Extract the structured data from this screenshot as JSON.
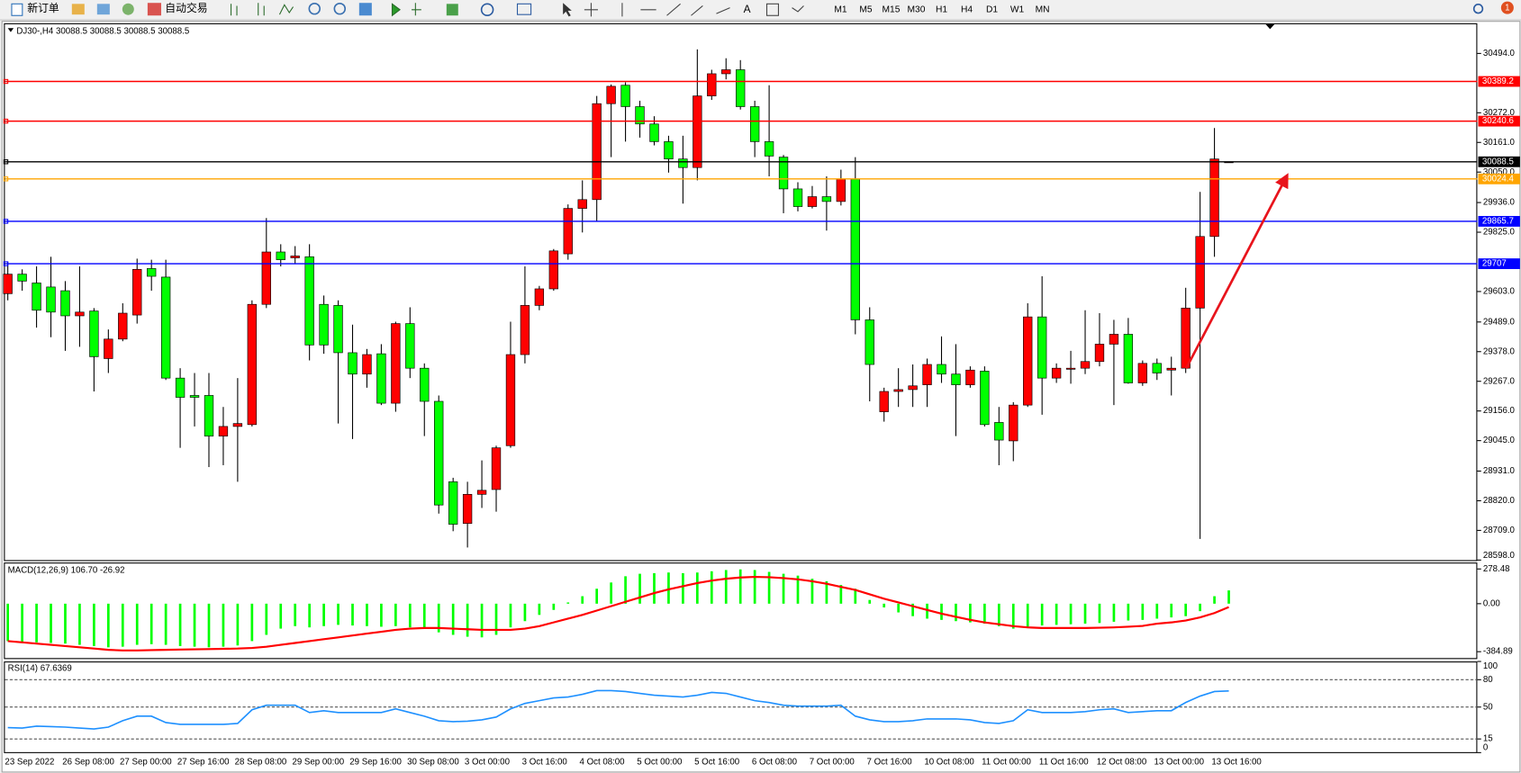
{
  "toolbar": {
    "new_order": "新订单",
    "auto_trading": "自动交易",
    "text_tool": "A",
    "timeframes": [
      "M1",
      "M5",
      "M15",
      "M30",
      "H1",
      "H4",
      "D1",
      "W1",
      "MN"
    ],
    "notifications": "1"
  },
  "chart_data": [
    {
      "type": "candlestick",
      "title": "DJ30-,H4",
      "up_color": "#ff0000",
      "down_color": "#00ff00",
      "categories": [
        "23 Sep 2022",
        null,
        null,
        null,
        "26 Sep 08:00",
        null,
        null,
        null,
        "27 Sep 00:00",
        null,
        null,
        null,
        "27 Sep 16:00",
        null,
        null,
        null,
        "28 Sep 08:00",
        null,
        null,
        null,
        "29 Sep 00:00",
        null,
        null,
        null,
        "29 Sep 16:00",
        null,
        null,
        null,
        "30 Sep 08:00",
        null,
        null,
        null,
        "3 Oct 00:00",
        null,
        null,
        null,
        "3 Oct 16:00",
        null,
        null,
        null,
        "4 Oct 08:00",
        null,
        null,
        null,
        "5 Oct 00:00",
        null,
        null,
        null,
        "5 Oct 16:00",
        null,
        null,
        null,
        "6 Oct 08:00",
        null,
        null,
        null,
        "7 Oct 00:00",
        null,
        null,
        null,
        "7 Oct 16:00",
        null,
        null,
        null,
        "10 Oct 08:00",
        null,
        null,
        null,
        "11 Oct 00:00",
        null,
        null,
        null,
        "11 Oct 16:00",
        null,
        null,
        null,
        "12 Oct 08:00",
        null,
        null,
        null,
        "13 Oct 00:00",
        null,
        null,
        null,
        "13 Oct 16:00",
        null
      ],
      "open": [
        29595,
        29668,
        29635,
        29620,
        29606,
        29512,
        29530,
        29352,
        29425,
        29515,
        29689,
        29657,
        29279,
        29214,
        29214,
        29062,
        29098,
        29105,
        29555,
        29751,
        29729,
        29733,
        29555,
        29551,
        29374,
        29294,
        29370,
        29185,
        29483,
        29316,
        29192,
        28891,
        28735,
        28844,
        28862,
        29026,
        29367,
        29551,
        29613,
        29744,
        29914,
        29947,
        30306,
        30375,
        30295,
        30230,
        30164,
        30099,
        30067,
        30335,
        30418,
        30433,
        30295,
        30164,
        30106,
        29987,
        29921,
        29958,
        29940,
        30023,
        29497,
        29153,
        29229,
        29236,
        29254,
        29330,
        29294,
        29254,
        29305,
        29113,
        29044,
        29178,
        29508,
        29279,
        29312,
        29316,
        29341,
        29406,
        29443,
        29261,
        29334,
        29309,
        29316,
        29541,
        29809,
        30088.5
      ],
      "high": [
        29715,
        29686,
        29697,
        29733,
        29642,
        29697,
        29541,
        29461,
        29559,
        29726,
        29722,
        29722,
        29316,
        29298,
        29298,
        29171,
        29279,
        29570,
        29878,
        29780,
        29773,
        29780,
        29588,
        29570,
        29479,
        29388,
        29406,
        29490,
        29544,
        29334,
        29214,
        28906,
        28891,
        28971,
        29026,
        29490,
        29697,
        29624,
        29762,
        29929,
        30019,
        30335,
        30378,
        30386,
        30317,
        30259,
        30186,
        30186,
        30509,
        30433,
        30476,
        30469,
        30317,
        30375,
        30114,
        30012,
        29998,
        30034,
        30059,
        30106,
        29544,
        29243,
        29316,
        29330,
        29352,
        29435,
        29406,
        29323,
        29323,
        29171,
        29189,
        29559,
        29660,
        29334,
        29381,
        29533,
        29522,
        29497,
        29504,
        29345,
        29352,
        29359,
        29617,
        29976,
        30215,
        30088.5
      ],
      "low": [
        29570,
        29606,
        29468,
        29432,
        29381,
        29396,
        29229,
        29298,
        29417,
        29483,
        29606,
        29272,
        29018,
        29098,
        28946,
        28953,
        28891,
        29098,
        29541,
        29697,
        29707,
        29345,
        29370,
        29109,
        29051,
        29243,
        29178,
        29153,
        29279,
        29062,
        28772,
        28706,
        28645,
        28793,
        28779,
        29018,
        29334,
        29533,
        29606,
        29722,
        29824,
        29867,
        30106,
        30164,
        30179,
        30150,
        30048,
        29932,
        30019,
        30320,
        30397,
        30284,
        30106,
        30034,
        29896,
        29903,
        29914,
        29831,
        29925,
        29443,
        29192,
        29116,
        29171,
        29171,
        29171,
        29261,
        29062,
        29243,
        29098,
        28953,
        28968,
        29171,
        29142,
        29261,
        29258,
        29294,
        29323,
        29178,
        29258,
        29250,
        29272,
        29214,
        29298,
        28677,
        29733,
        30088.5
      ],
      "close": [
        29668,
        29642,
        29533,
        29526,
        29512,
        29526,
        29359,
        29425,
        29522,
        29686,
        29660,
        29279,
        29207,
        29207,
        29062,
        29098,
        29109,
        29555,
        29751,
        29722,
        29736,
        29403,
        29403,
        29374,
        29294,
        29367,
        29185,
        29483,
        29316,
        29192,
        28804,
        28732,
        28844,
        28859,
        29018,
        29367,
        29551,
        29613,
        29755,
        29914,
        29947,
        30306,
        30371,
        30295,
        30230,
        30164,
        30099,
        30067,
        30335,
        30418,
        30433,
        30295,
        30164,
        30110,
        29987,
        29921,
        29958,
        29940,
        30023,
        29497,
        29330,
        29229,
        29236,
        29250,
        29330,
        29294,
        29254,
        29309,
        29105,
        29047,
        29178,
        29508,
        29279,
        29316,
        29316,
        29341,
        29406,
        29443,
        29261,
        29334,
        29298,
        29316,
        29541,
        29809,
        30099,
        30088.5
      ],
      "ylim": [
        28596,
        30596
      ],
      "yticks": [
        {
          "value": 30494,
          "label": "30494.0"
        },
        {
          "value": 30272,
          "label": "30272.0"
        },
        {
          "value": 30161,
          "label": "30161.0"
        },
        {
          "value": 30050,
          "label": "30050.0"
        },
        {
          "value": 29936,
          "label": "29936.0"
        },
        {
          "value": 29825,
          "label": "29825.0"
        },
        {
          "value": 29603,
          "label": "29603.0"
        },
        {
          "value": 29489,
          "label": "29489.0"
        },
        {
          "value": 29378,
          "label": "29378.0"
        },
        {
          "value": 29267,
          "label": "29267.0"
        },
        {
          "value": 29156,
          "label": "29156.0"
        },
        {
          "value": 29045,
          "label": "29045.0"
        },
        {
          "value": 28931,
          "label": "28931.0"
        },
        {
          "value": 28820,
          "label": "28820.0"
        },
        {
          "value": 28709,
          "label": "28709.0"
        },
        {
          "value": 28598,
          "label": "28598.0"
        }
      ],
      "levels": [
        {
          "value": 30389.2,
          "color": "#ff0000"
        },
        {
          "value": 30240.6,
          "color": "#ff0000"
        },
        {
          "value": 30088.5,
          "color": "#000000"
        },
        {
          "value": 30024.4,
          "color": "#ffa500"
        },
        {
          "value": 29865.7,
          "color": "#0000ff"
        },
        {
          "value": 29707.0,
          "color": "#0000ff"
        }
      ]
    },
    {
      "type": "macd",
      "title": "MACD(12,26,9)",
      "histogram": {
        "color": "#00ff00",
        "last_label": "106.70",
        "values": [
          -300,
          -305,
          -310,
          -315,
          -320,
          -330,
          -340,
          -350,
          -345,
          -330,
          -325,
          -330,
          -340,
          -345,
          -350,
          -345,
          -335,
          -300,
          -250,
          -200,
          -180,
          -190,
          -180,
          -170,
          -175,
          -180,
          -185,
          -180,
          -190,
          -200,
          -230,
          -250,
          -265,
          -270,
          -250,
          -190,
          -140,
          -90,
          -50,
          10,
          60,
          120,
          170,
          220,
          240,
          245,
          250,
          245,
          250,
          260,
          270,
          275,
          270,
          255,
          240,
          225,
          200,
          180,
          150,
          120,
          30,
          -30,
          -70,
          -100,
          -120,
          -130,
          -140,
          -150,
          -160,
          -180,
          -200,
          -195,
          -175,
          -170,
          -165,
          -160,
          -155,
          -145,
          -135,
          -130,
          -120,
          -110,
          -100,
          -60,
          60,
          106.7
        ]
      },
      "signal": {
        "color": "#ff0000",
        "values": [
          -300,
          -310,
          -320,
          -330,
          -340,
          -350,
          -360,
          -370,
          -375,
          -375,
          -372,
          -370,
          -368,
          -366,
          -364,
          -362,
          -360,
          -355,
          -345,
          -330,
          -315,
          -300,
          -285,
          -270,
          -255,
          -240,
          -225,
          -210,
          -200,
          -195,
          -195,
          -200,
          -205,
          -210,
          -210,
          -210,
          -200,
          -180,
          -150,
          -120,
          -90,
          -55,
          -20,
          15,
          50,
          85,
          115,
          140,
          165,
          185,
          200,
          210,
          215,
          212,
          205,
          195,
          180,
          160,
          135,
          110,
          75,
          40,
          10,
          -20,
          -50,
          -80,
          -105,
          -130,
          -150,
          -165,
          -180,
          -190,
          -195,
          -195,
          -195,
          -195,
          -193,
          -190,
          -185,
          -178,
          -160,
          -150,
          -135,
          -110,
          -75,
          -26.92
        ]
      },
      "ylim": [
        -440,
        330
      ],
      "yticks": [
        278.48,
        {
          "value": 0,
          "label": "0.00"
        },
        -384.89
      ]
    },
    {
      "type": "line",
      "title": "RSI(14)",
      "color": "#1e90ff",
      "values": [
        27.5,
        27,
        29,
        28.5,
        28,
        27,
        26,
        28,
        35,
        40,
        40,
        33,
        31,
        31,
        31,
        31,
        32,
        47,
        52,
        52,
        52,
        44,
        46,
        44,
        44,
        44,
        44,
        48,
        44,
        40,
        35,
        34,
        34.5,
        36,
        39,
        48,
        54,
        57,
        60,
        61,
        64,
        68,
        68,
        67,
        65,
        63,
        62,
        61,
        63,
        66,
        65,
        61,
        57,
        55,
        52,
        51,
        51,
        51,
        52,
        40,
        36,
        34,
        34,
        35,
        37,
        37,
        37,
        36,
        33,
        32,
        35,
        47,
        44,
        44,
        44,
        45,
        47,
        48,
        44,
        45,
        46,
        46,
        55,
        62,
        67,
        67.6369
      ],
      "ylim": [
        0,
        100
      ],
      "yticks": [
        100,
        80,
        50,
        15,
        0
      ],
      "levels": [
        80,
        50,
        15
      ]
    }
  ]
}
